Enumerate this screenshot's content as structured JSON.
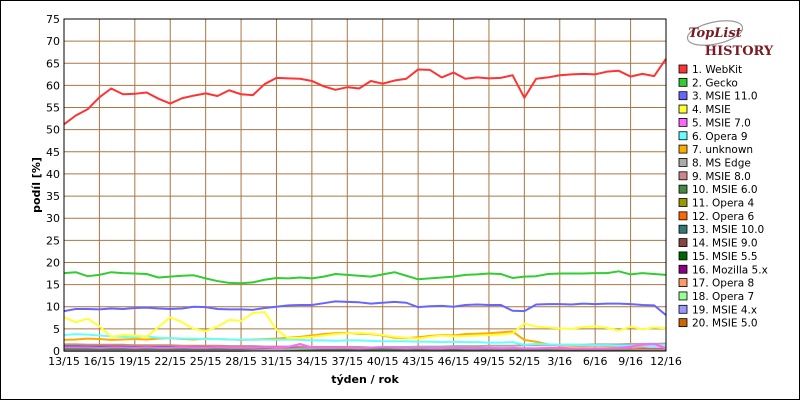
{
  "logo": {
    "mark": "TopList",
    "word": "HISTORY"
  },
  "chart_data": {
    "type": "line",
    "xlabel": "týden / rok",
    "ylabel": "podíl [%]",
    "ylim": [
      0,
      75
    ],
    "yticks": [
      0,
      5,
      10,
      15,
      20,
      25,
      30,
      35,
      40,
      45,
      50,
      55,
      60,
      65,
      70,
      75
    ],
    "xtick_labels": [
      "13/15",
      "16/15",
      "19/15",
      "22/15",
      "25/15",
      "28/15",
      "31/15",
      "34/15",
      "37/15",
      "40/15",
      "43/15",
      "46/15",
      "49/15",
      "52/15",
      "3/16",
      "6/16",
      "9/16",
      "12/16"
    ],
    "xtick_positions": [
      0,
      3,
      6,
      9,
      12,
      15,
      18,
      21,
      24,
      27,
      30,
      33,
      36,
      39,
      42,
      45,
      48,
      51
    ],
    "n_points": 52,
    "grid": true,
    "legend_position": "right",
    "series": [
      {
        "name": "1. WebKit",
        "color": "#ff3333",
        "values": [
          51.2,
          53.2,
          54.6,
          57.3,
          59.3,
          58.0,
          58.1,
          58.4,
          57.0,
          55.9,
          57.1,
          57.7,
          58.2,
          57.6,
          58.9,
          58.0,
          57.8,
          60.3,
          61.7,
          61.6,
          61.5,
          61.0,
          59.8,
          59.0,
          59.6,
          59.3,
          61.0,
          60.4,
          61.1,
          61.5,
          63.6,
          63.5,
          61.8,
          62.9,
          61.5,
          61.8,
          61.6,
          61.7,
          62.3,
          57.2,
          61.5,
          61.8,
          62.3,
          62.5,
          62.6,
          62.5,
          63.1,
          63.3,
          62.0,
          62.6,
          62.1,
          66.0
        ]
      },
      {
        "name": "2. Gecko",
        "color": "#33cc33",
        "values": [
          17.6,
          17.8,
          16.9,
          17.2,
          17.8,
          17.6,
          17.5,
          17.4,
          16.6,
          16.8,
          17.0,
          17.1,
          16.4,
          15.8,
          15.4,
          15.3,
          15.5,
          16.1,
          16.5,
          16.4,
          16.6,
          16.4,
          16.8,
          17.4,
          17.2,
          17.0,
          16.8,
          17.3,
          17.8,
          17.0,
          16.2,
          16.4,
          16.6,
          16.8,
          17.2,
          17.3,
          17.5,
          17.4,
          16.5,
          16.8,
          16.9,
          17.4,
          17.5,
          17.5,
          17.5,
          17.6,
          17.6,
          18.0,
          17.3,
          17.6,
          17.4,
          17.2
        ]
      },
      {
        "name": "3. MSIE 11.0",
        "color": "#6666ff",
        "values": [
          9.0,
          9.5,
          9.5,
          9.4,
          9.6,
          9.5,
          9.7,
          9.8,
          9.6,
          9.5,
          9.6,
          10.0,
          9.9,
          9.5,
          9.4,
          9.4,
          9.3,
          9.7,
          10.0,
          10.3,
          10.4,
          10.4,
          10.8,
          11.2,
          11.1,
          11.0,
          10.7,
          10.9,
          11.1,
          10.9,
          9.9,
          10.1,
          10.2,
          10.0,
          10.4,
          10.5,
          10.4,
          10.4,
          9.1,
          9.0,
          10.5,
          10.6,
          10.6,
          10.5,
          10.7,
          10.6,
          10.7,
          10.7,
          10.6,
          10.4,
          10.3,
          8.1
        ]
      },
      {
        "name": "4. MSIE",
        "color": "#ffff33",
        "values": [
          7.6,
          6.5,
          7.3,
          5.6,
          3.2,
          3.6,
          3.5,
          3.2,
          5.4,
          7.6,
          6.5,
          5.0,
          4.5,
          5.5,
          7.0,
          6.8,
          8.6,
          8.8,
          4.8,
          2.9,
          3.0,
          3.2,
          3.5,
          3.8,
          4.0,
          4.1,
          3.9,
          3.6,
          3.2,
          3.0,
          2.8,
          3.2,
          3.5,
          3.3,
          3.4,
          3.5,
          3.6,
          3.7,
          4.0,
          6.2,
          5.5,
          5.3,
          5.1,
          5.0,
          5.4,
          5.6,
          5.2,
          4.6,
          5.5,
          4.9,
          5.3,
          5.1
        ]
      },
      {
        "name": "5. MSIE 7.0",
        "color": "#ff66ff",
        "values": [
          0.8,
          0.8,
          0.8,
          0.7,
          0.8,
          0.8,
          0.7,
          0.8,
          0.7,
          0.7,
          0.8,
          0.7,
          0.7,
          0.8,
          0.7,
          0.7,
          0.7,
          0.8,
          0.7,
          0.9,
          1.6,
          0.8,
          0.7,
          0.7,
          0.7,
          0.6,
          0.7,
          0.8,
          0.7,
          0.6,
          0.7,
          0.6,
          0.6,
          0.7,
          0.6,
          0.6,
          0.7,
          0.6,
          0.7,
          0.6,
          0.6,
          0.7,
          0.8,
          0.6,
          0.6,
          0.6,
          0.6,
          0.7,
          1.0,
          1.4,
          1.6,
          0.6
        ]
      },
      {
        "name": "6. Opera 9",
        "color": "#66ffff",
        "values": [
          3.6,
          3.8,
          3.7,
          3.5,
          3.3,
          3.2,
          3.1,
          3.3,
          3.0,
          2.9,
          2.8,
          2.8,
          2.7,
          2.7,
          2.6,
          2.6,
          2.5,
          2.6,
          2.5,
          2.6,
          2.5,
          2.4,
          2.4,
          2.3,
          2.4,
          2.4,
          2.3,
          2.2,
          2.2,
          2.2,
          2.1,
          2.1,
          2.0,
          2.1,
          2.0,
          2.0,
          1.9,
          1.9,
          2.0,
          1.4,
          1.6,
          1.5,
          1.4,
          1.4,
          1.3,
          1.3,
          1.3,
          1.2,
          1.2,
          1.2,
          1.1,
          1.1
        ]
      },
      {
        "name": "7. unknown",
        "color": "#ffaa00",
        "values": [
          2.5,
          2.6,
          2.8,
          2.7,
          2.5,
          2.6,
          2.7,
          2.6,
          2.8,
          2.9,
          2.7,
          2.6,
          2.8,
          2.7,
          2.6,
          2.5,
          2.6,
          2.7,
          2.8,
          3.0,
          3.2,
          3.5,
          3.8,
          4.0,
          4.1,
          3.9,
          3.8,
          3.5,
          3.0,
          2.9,
          3.1,
          3.4,
          3.6,
          3.5,
          3.8,
          3.9,
          4.0,
          4.2,
          4.4,
          2.5,
          2.1,
          1.5,
          1.3,
          1.2,
          1.1,
          1.2,
          1.1,
          1.0,
          1.1,
          1.0,
          1.2,
          1.1
        ]
      },
      {
        "name": "8. MS Edge",
        "color": "#aaaaaa",
        "values": [
          0.0,
          0.0,
          0.0,
          0.0,
          0.0,
          0.0,
          0.0,
          0.0,
          0.0,
          0.0,
          0.0,
          0.0,
          0.0,
          0.0,
          0.0,
          0.0,
          0.1,
          0.2,
          0.3,
          0.4,
          0.5,
          0.6,
          0.7,
          0.7,
          0.8,
          0.8,
          0.8,
          0.9,
          0.9,
          0.9,
          1.0,
          1.0,
          1.0,
          1.1,
          1.1,
          1.1,
          1.2,
          1.2,
          1.2,
          1.3,
          1.3,
          1.3,
          1.4,
          1.4,
          1.4,
          1.5,
          1.5,
          1.5,
          1.6,
          1.6,
          1.6,
          1.7
        ]
      },
      {
        "name": "9. MSIE 8.0",
        "color": "#cc8888",
        "values": [
          1.5,
          1.5,
          1.4,
          1.4,
          1.4,
          1.4,
          1.3,
          1.3,
          1.3,
          1.3,
          1.2,
          1.2,
          1.2,
          1.2,
          1.1,
          1.1,
          1.1,
          1.0,
          1.0,
          1.0,
          1.0,
          0.9,
          0.9,
          0.9,
          0.9,
          0.9,
          0.8,
          0.8,
          0.8,
          0.8,
          0.8,
          0.7,
          0.7,
          0.7,
          0.7,
          0.7,
          0.6,
          0.6,
          0.6,
          0.6,
          0.6,
          0.6,
          0.5,
          0.5,
          0.5,
          0.5,
          0.5,
          0.5,
          0.5,
          0.4,
          0.4,
          0.4
        ]
      },
      {
        "name": "10. MSIE 6.0",
        "color": "#448844",
        "values": [
          0.3,
          0.3,
          0.3,
          0.3,
          0.3,
          0.3,
          0.3,
          0.3,
          0.3,
          0.3,
          0.3,
          0.3,
          0.3,
          0.3,
          0.3,
          0.3,
          0.3,
          0.3,
          0.3,
          0.3,
          0.3,
          0.3,
          0.3,
          0.3,
          0.3,
          0.3,
          0.3,
          0.3,
          0.3,
          0.3,
          0.3,
          0.3,
          0.3,
          0.3,
          0.3,
          0.3,
          0.3,
          0.3,
          0.3,
          0.3,
          0.3,
          0.3,
          0.3,
          0.3,
          0.3,
          0.3,
          0.3,
          0.3,
          0.3,
          0.3,
          0.3,
          0.3
        ]
      },
      {
        "name": "11. Opera 4",
        "color": "#999900",
        "values": [
          0.2,
          0.2,
          0.2,
          0.2,
          0.2,
          0.2,
          0.2,
          0.2,
          0.2,
          0.2,
          0.2,
          0.2,
          0.2,
          0.2,
          0.2,
          0.2,
          0.2,
          0.2,
          0.2,
          0.2,
          0.2,
          0.2,
          0.2,
          0.2,
          0.2,
          0.2,
          0.2,
          0.2,
          0.2,
          0.2,
          0.2,
          0.2,
          0.2,
          0.2,
          0.2,
          0.2,
          0.2,
          0.2,
          0.2,
          0.2,
          0.2,
          0.2,
          0.2,
          0.2,
          0.2,
          0.2,
          0.2,
          0.2,
          0.2,
          0.2,
          0.2,
          0.2
        ]
      },
      {
        "name": "12. Opera 6",
        "color": "#ff6600",
        "values": [
          0.2,
          0.2,
          0.2,
          0.2,
          0.2,
          0.2,
          0.2,
          0.2,
          0.2,
          0.2,
          0.2,
          0.2,
          0.2,
          0.2,
          0.2,
          0.2,
          0.2,
          0.2,
          0.2,
          0.2,
          0.2,
          0.2,
          0.2,
          0.2,
          0.2,
          0.2,
          0.2,
          0.2,
          0.2,
          0.2,
          0.2,
          0.2,
          0.2,
          0.2,
          0.2,
          0.2,
          0.2,
          0.2,
          0.2,
          0.2,
          0.2,
          0.2,
          0.2,
          0.2,
          0.2,
          0.2,
          0.2,
          0.2,
          0.2,
          0.2,
          0.2,
          0.2
        ]
      },
      {
        "name": "13. MSIE 10.0",
        "color": "#337777",
        "values": [
          1.1,
          1.1,
          1.1,
          1.0,
          1.0,
          1.0,
          1.0,
          1.0,
          0.9,
          0.9,
          0.9,
          0.9,
          0.9,
          0.9,
          0.8,
          0.8,
          0.8,
          0.8,
          0.8,
          0.8,
          0.7,
          0.7,
          0.7,
          0.7,
          0.7,
          0.7,
          0.6,
          0.6,
          0.6,
          0.6,
          0.6,
          0.6,
          0.5,
          0.5,
          0.5,
          0.5,
          0.5,
          0.5,
          0.5,
          0.4,
          0.4,
          0.4,
          0.4,
          0.4,
          0.4,
          0.4,
          0.4,
          0.3,
          0.3,
          0.3,
          0.3,
          0.3
        ]
      },
      {
        "name": "14. MSIE 9.0",
        "color": "#884444",
        "values": [
          1.2,
          1.2,
          1.1,
          1.1,
          1.1,
          1.1,
          1.1,
          1.0,
          1.0,
          1.0,
          1.0,
          1.0,
          1.0,
          0.9,
          0.9,
          0.9,
          0.9,
          0.9,
          0.9,
          0.8,
          0.8,
          0.8,
          0.8,
          0.8,
          0.8,
          0.7,
          0.7,
          0.7,
          0.7,
          0.7,
          0.7,
          0.6,
          0.6,
          0.6,
          0.6,
          0.6,
          0.6,
          0.6,
          0.5,
          0.5,
          0.5,
          0.5,
          0.5,
          0.5,
          0.5,
          0.5,
          0.4,
          0.4,
          0.4,
          0.4,
          0.4,
          0.4
        ]
      },
      {
        "name": "15. MSIE 5.5",
        "color": "#006600",
        "values": [
          0.1,
          0.1,
          0.1,
          0.1,
          0.1,
          0.1,
          0.1,
          0.1,
          0.1,
          0.1,
          0.1,
          0.1,
          0.1,
          0.1,
          0.1,
          0.1,
          0.1,
          0.1,
          0.1,
          0.1,
          0.1,
          0.1,
          0.1,
          0.1,
          0.1,
          0.1,
          0.1,
          0.1,
          0.1,
          0.1,
          0.1,
          0.1,
          0.1,
          0.1,
          0.1,
          0.1,
          0.1,
          0.1,
          0.1,
          0.1,
          0.1,
          0.1,
          0.1,
          0.1,
          0.1,
          0.1,
          0.1,
          0.1,
          0.1,
          0.1,
          0.1,
          0.1
        ]
      },
      {
        "name": "16. Mozilla 5.x",
        "color": "#880088",
        "values": [
          0.5,
          0.5,
          0.5,
          0.5,
          0.5,
          0.5,
          0.5,
          0.5,
          0.5,
          0.5,
          0.5,
          0.5,
          0.5,
          0.5,
          0.5,
          0.5,
          0.5,
          0.5,
          0.5,
          0.5,
          0.5,
          0.5,
          0.5,
          0.5,
          0.5,
          0.5,
          0.5,
          0.5,
          0.5,
          0.5,
          0.5,
          0.5,
          0.5,
          0.5,
          0.5,
          0.5,
          0.5,
          0.5,
          0.5,
          0.5,
          0.5,
          0.5,
          0.5,
          0.5,
          0.5,
          0.5,
          0.5,
          0.5,
          0.5,
          0.5,
          0.5,
          0.5
        ]
      },
      {
        "name": "17. Opera 8",
        "color": "#ff9966",
        "values": [
          0.1,
          0.1,
          0.1,
          0.1,
          0.1,
          0.1,
          0.1,
          0.1,
          0.1,
          0.1,
          0.1,
          0.1,
          0.1,
          0.1,
          0.1,
          0.1,
          0.1,
          0.1,
          0.1,
          0.1,
          0.1,
          0.1,
          0.1,
          0.1,
          0.1,
          0.1,
          0.1,
          0.1,
          0.1,
          0.1,
          0.1,
          0.1,
          0.1,
          0.1,
          0.1,
          0.1,
          0.1,
          0.1,
          0.1,
          0.1,
          0.1,
          0.1,
          0.1,
          0.1,
          0.1,
          0.1,
          0.1,
          0.1,
          0.1,
          0.1,
          0.1,
          0.1
        ]
      },
      {
        "name": "18. Opera 7",
        "color": "#99ff99",
        "values": [
          0.1,
          0.1,
          0.1,
          0.1,
          0.1,
          0.1,
          0.1,
          0.1,
          0.1,
          0.1,
          0.1,
          0.1,
          0.1,
          0.1,
          0.1,
          0.1,
          0.1,
          0.1,
          0.1,
          0.1,
          0.1,
          0.1,
          0.1,
          0.1,
          0.1,
          0.1,
          0.1,
          0.1,
          0.1,
          0.1,
          0.1,
          0.1,
          0.1,
          0.1,
          0.1,
          0.1,
          0.1,
          0.1,
          0.1,
          0.1,
          0.1,
          0.1,
          0.1,
          0.1,
          0.1,
          0.1,
          0.1,
          0.1,
          0.1,
          0.1,
          0.1,
          0.1
        ]
      },
      {
        "name": "19. MSIE 4.x",
        "color": "#9999ff",
        "values": [
          0.1,
          0.1,
          0.1,
          0.1,
          0.1,
          0.1,
          0.1,
          0.1,
          0.1,
          0.1,
          0.1,
          0.1,
          0.1,
          0.1,
          0.1,
          0.1,
          0.1,
          0.1,
          0.1,
          0.1,
          0.1,
          0.1,
          0.1,
          0.1,
          0.1,
          0.1,
          0.1,
          0.1,
          0.1,
          0.1,
          0.1,
          0.1,
          0.1,
          0.1,
          0.1,
          0.1,
          0.1,
          0.1,
          0.1,
          0.1,
          0.1,
          0.1,
          0.1,
          0.1,
          0.1,
          0.1,
          0.1,
          0.1,
          0.1,
          0.1,
          0.1,
          0.1
        ]
      },
      {
        "name": "20. MSIE 5.0",
        "color": "#cc6600",
        "values": [
          0.1,
          0.1,
          0.1,
          0.1,
          0.1,
          0.1,
          0.1,
          0.1,
          0.1,
          0.1,
          0.1,
          0.1,
          0.1,
          0.1,
          0.1,
          0.1,
          0.1,
          0.1,
          0.1,
          0.1,
          0.1,
          0.1,
          0.1,
          0.1,
          0.1,
          0.1,
          0.1,
          0.1,
          0.1,
          0.1,
          0.1,
          0.1,
          0.1,
          0.1,
          0.1,
          0.1,
          0.1,
          0.1,
          0.1,
          0.1,
          0.1,
          0.1,
          0.1,
          0.1,
          0.1,
          0.1,
          0.1,
          0.1,
          0.1,
          0.1,
          0.1,
          0.1
        ]
      }
    ]
  }
}
